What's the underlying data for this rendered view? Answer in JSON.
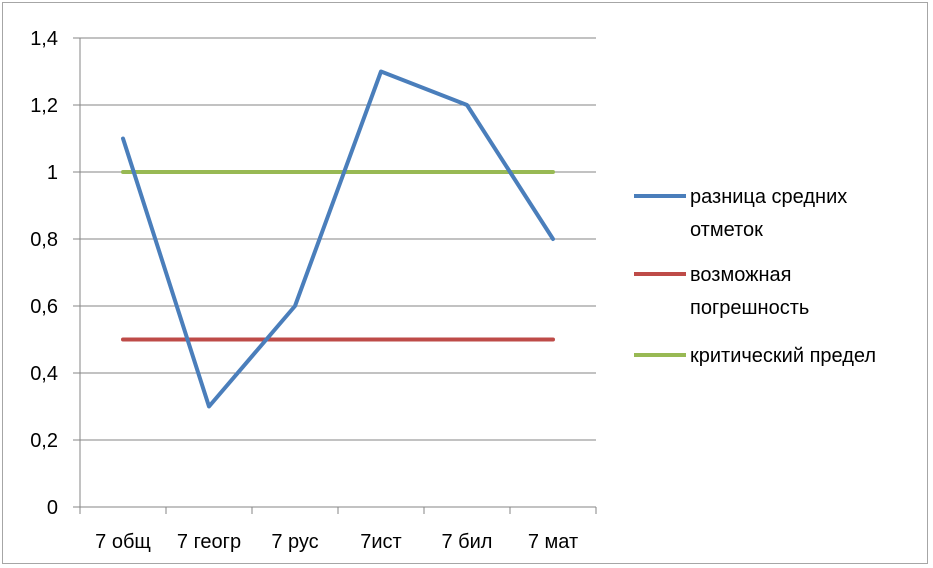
{
  "chart_data": {
    "type": "line",
    "categories": [
      "7 общ",
      "7 геогр",
      "7 рус",
      "7ист",
      "7 бил",
      "7 мат"
    ],
    "ylim": [
      0,
      1.4
    ],
    "yticks": [
      "0",
      "0,2",
      "0,4",
      "0,6",
      "0,8",
      "1",
      "1,2",
      "1,4"
    ],
    "grid": true,
    "legend_position": "right",
    "series": [
      {
        "name": "разница средних отметок",
        "legend_lines": [
          "разница средних",
          "отметок"
        ],
        "color": "#4a7ebb",
        "values": [
          1.1,
          0.3,
          0.6,
          1.3,
          1.2,
          0.8
        ]
      },
      {
        "name": "возможная погрешность",
        "legend_lines": [
          "возможная",
          "погрешность"
        ],
        "color": "#be4b48",
        "values": [
          0.5,
          0.5,
          0.5,
          0.5,
          0.5,
          0.5
        ]
      },
      {
        "name": "критический предел",
        "legend_lines": [
          "критический предел"
        ],
        "color": "#98b954",
        "values": [
          1,
          1,
          1,
          1,
          1,
          1
        ]
      }
    ]
  }
}
